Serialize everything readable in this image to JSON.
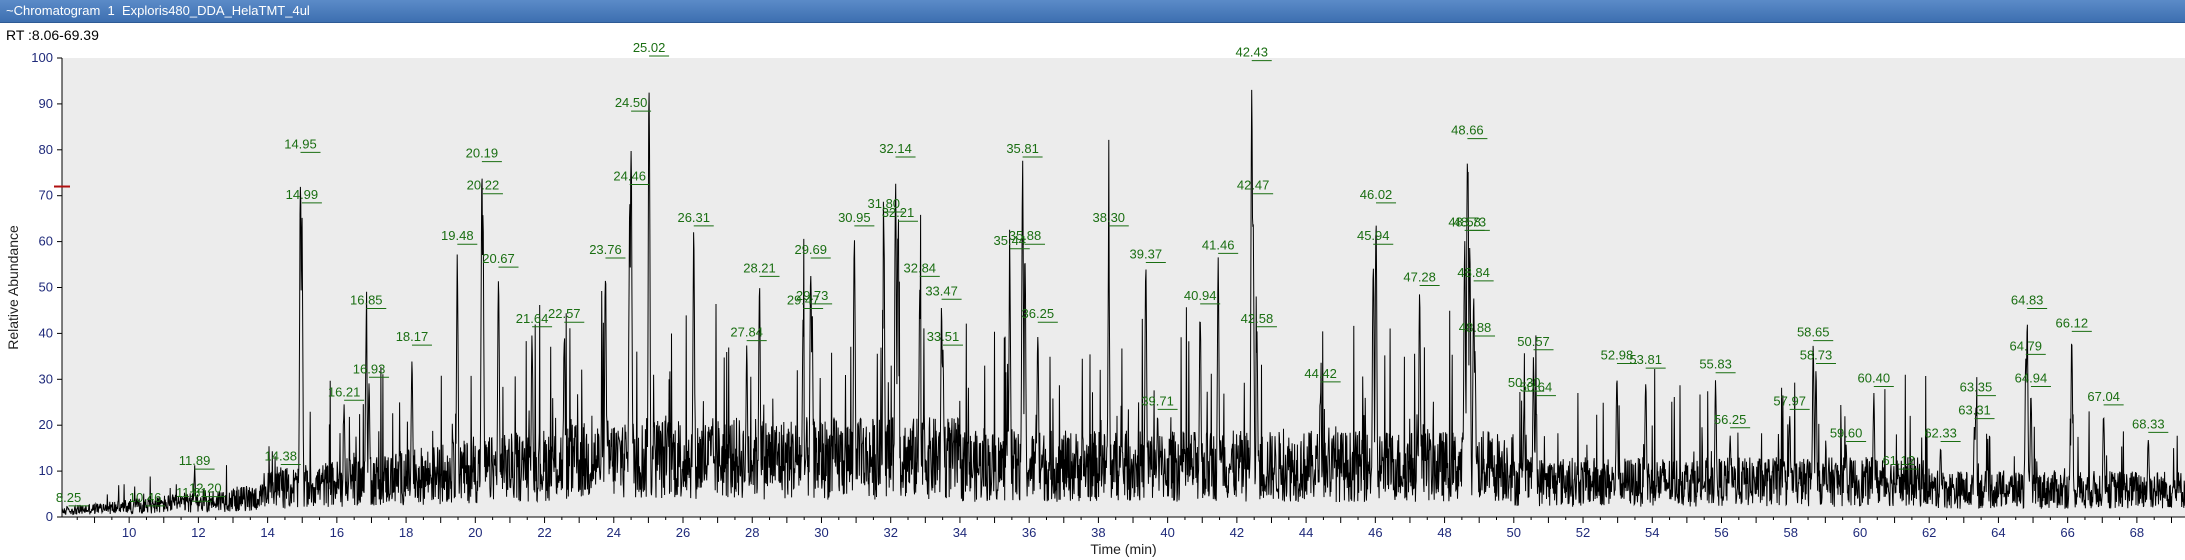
{
  "window": {
    "title": "~Chromatogram  1  Exploris480_DDA_HelaTMT_4ul"
  },
  "header": {
    "rt_range": "RT :8.06-69.39"
  },
  "colors": {
    "trace": "#000000",
    "peak_label": "#1a6e12",
    "tick": "#1f2a7a",
    "plot_bg": "#ececec"
  },
  "chart_data": {
    "type": "line",
    "xlabel": "Time (min)",
    "ylabel": "Relative Abundance",
    "xlim": [
      8.06,
      69.39
    ],
    "ylim": [
      0,
      100
    ],
    "x_ticks": [
      10,
      12,
      14,
      16,
      18,
      20,
      22,
      24,
      26,
      28,
      30,
      32,
      34,
      36,
      38,
      40,
      42,
      44,
      46,
      48,
      50,
      52,
      54,
      56,
      58,
      60,
      62,
      64,
      66,
      68
    ],
    "y_ticks": [
      0,
      10,
      20,
      30,
      40,
      50,
      60,
      70,
      80,
      90,
      100
    ],
    "peaks": [
      {
        "rt": 8.25,
        "label": "8.25",
        "y": 2
      },
      {
        "rt": 10.46,
        "label": "10.46",
        "y": 2
      },
      {
        "rt": 11.81,
        "label": "11.81",
        "y": 3
      },
      {
        "rt": 11.89,
        "label": "11.89",
        "y": 10
      },
      {
        "rt": 12.2,
        "label": "12.20",
        "y": 4
      },
      {
        "rt": 14.38,
        "label": "14.38",
        "y": 11
      },
      {
        "rt": 14.95,
        "label": "14.95",
        "y": 79
      },
      {
        "rt": 14.99,
        "label": "14.99",
        "y": 68
      },
      {
        "rt": 16.21,
        "label": "16.21",
        "y": 25
      },
      {
        "rt": 16.85,
        "label": "16.85",
        "y": 45
      },
      {
        "rt": 16.93,
        "label": "16.93",
        "y": 30
      },
      {
        "rt": 18.17,
        "label": "18.17",
        "y": 37
      },
      {
        "rt": 19.48,
        "label": "19.48",
        "y": 59
      },
      {
        "rt": 20.19,
        "label": "20.19",
        "y": 77
      },
      {
        "rt": 20.22,
        "label": "20.22",
        "y": 70
      },
      {
        "rt": 20.67,
        "label": "20.67",
        "y": 54
      },
      {
        "rt": 21.64,
        "label": "21.64",
        "y": 41
      },
      {
        "rt": 22.57,
        "label": "22.57",
        "y": 42
      },
      {
        "rt": 23.76,
        "label": "23.76",
        "y": 56
      },
      {
        "rt": 24.46,
        "label": "24.46",
        "y": 72
      },
      {
        "rt": 24.5,
        "label": "24.50",
        "y": 88
      },
      {
        "rt": 25.02,
        "label": "25.02",
        "y": 100
      },
      {
        "rt": 26.31,
        "label": "26.31",
        "y": 63
      },
      {
        "rt": 27.84,
        "label": "27.84",
        "y": 38
      },
      {
        "rt": 28.21,
        "label": "28.21",
        "y": 52
      },
      {
        "rt": 29.47,
        "label": "29.47",
        "y": 45
      },
      {
        "rt": 29.69,
        "label": "29.69",
        "y": 56
      },
      {
        "rt": 29.73,
        "label": "29.73",
        "y": 46
      },
      {
        "rt": 30.95,
        "label": "30.95",
        "y": 63
      },
      {
        "rt": 31.8,
        "label": "31.80",
        "y": 66
      },
      {
        "rt": 32.14,
        "label": "32.14",
        "y": 78
      },
      {
        "rt": 32.21,
        "label": "32.21",
        "y": 64
      },
      {
        "rt": 32.84,
        "label": "32.84",
        "y": 52
      },
      {
        "rt": 33.47,
        "label": "33.47",
        "y": 47
      },
      {
        "rt": 33.51,
        "label": "33.51",
        "y": 37
      },
      {
        "rt": 35.44,
        "label": "35.44",
        "y": 58
      },
      {
        "rt": 35.81,
        "label": "35.81",
        "y": 78
      },
      {
        "rt": 35.88,
        "label": "35.88",
        "y": 59
      },
      {
        "rt": 36.25,
        "label": "36.25",
        "y": 42
      },
      {
        "rt": 38.3,
        "label": "38.30",
        "y": 63
      },
      {
        "rt": 39.37,
        "label": "39.37",
        "y": 55
      },
      {
        "rt": 39.71,
        "label": "39.71",
        "y": 23
      },
      {
        "rt": 40.94,
        "label": "40.94",
        "y": 46
      },
      {
        "rt": 41.46,
        "label": "41.46",
        "y": 57
      },
      {
        "rt": 42.43,
        "label": "42.43",
        "y": 99
      },
      {
        "rt": 42.47,
        "label": "42.47",
        "y": 70
      },
      {
        "rt": 42.58,
        "label": "42.58",
        "y": 41
      },
      {
        "rt": 44.42,
        "label": "44.42",
        "y": 29
      },
      {
        "rt": 45.94,
        "label": "45.94",
        "y": 59
      },
      {
        "rt": 46.02,
        "label": "46.02",
        "y": 68
      },
      {
        "rt": 47.28,
        "label": "47.28",
        "y": 50
      },
      {
        "rt": 48.58,
        "label": "48.58",
        "y": 62
      },
      {
        "rt": 48.66,
        "label": "48.66",
        "y": 82
      },
      {
        "rt": 48.73,
        "label": "48.73",
        "y": 62
      },
      {
        "rt": 48.84,
        "label": "48.84",
        "y": 51
      },
      {
        "rt": 48.88,
        "label": "48.88",
        "y": 39
      },
      {
        "rt": 50.3,
        "label": "50.30",
        "y": 27
      },
      {
        "rt": 50.57,
        "label": "50.57",
        "y": 36
      },
      {
        "rt": 50.64,
        "label": "50.64",
        "y": 26
      },
      {
        "rt": 52.98,
        "label": "52.98",
        "y": 33
      },
      {
        "rt": 53.81,
        "label": "53.81",
        "y": 32
      },
      {
        "rt": 55.83,
        "label": "55.83",
        "y": 31
      },
      {
        "rt": 56.25,
        "label": "56.25",
        "y": 19
      },
      {
        "rt": 57.97,
        "label": "57.97",
        "y": 23
      },
      {
        "rt": 58.65,
        "label": "58.65",
        "y": 38
      },
      {
        "rt": 58.73,
        "label": "58.73",
        "y": 33
      },
      {
        "rt": 59.6,
        "label": "59.60",
        "y": 16
      },
      {
        "rt": 60.4,
        "label": "60.40",
        "y": 28
      },
      {
        "rt": 61.12,
        "label": "61.12",
        "y": 10
      },
      {
        "rt": 62.33,
        "label": "62.33",
        "y": 16
      },
      {
        "rt": 63.31,
        "label": "63.31",
        "y": 21
      },
      {
        "rt": 63.35,
        "label": "63.35",
        "y": 26
      },
      {
        "rt": 64.79,
        "label": "64.79",
        "y": 35
      },
      {
        "rt": 64.83,
        "label": "64.83",
        "y": 45
      },
      {
        "rt": 64.94,
        "label": "64.94",
        "y": 28
      },
      {
        "rt": 66.12,
        "label": "66.12",
        "y": 40
      },
      {
        "rt": 67.04,
        "label": "67.04",
        "y": 24
      },
      {
        "rt": 68.33,
        "label": "68.33",
        "y": 18
      }
    ]
  }
}
